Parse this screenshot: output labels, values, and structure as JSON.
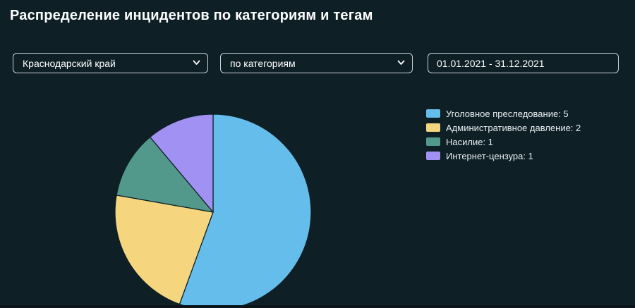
{
  "page": {
    "title": "Распределение инцидентов по категориям и тегам",
    "background_color": "#0e1f26"
  },
  "controls": {
    "region_select": {
      "value": "Краснодарский край"
    },
    "grouping_select": {
      "value": "по категориям"
    },
    "date_range_input": {
      "value": "01.01.2021 - 31.12.2021"
    }
  },
  "chart_data": {
    "type": "pie",
    "title": "Распределение инцидентов по категориям и тегам",
    "total": 9,
    "start_angle_deg": 0,
    "direction": "clockwise",
    "legend_position": "right",
    "legend_label_format": "{label}: {value}",
    "slices": [
      {
        "label": "Уголовное преследование",
        "value": 5,
        "color": "#65bdec"
      },
      {
        "label": "Административное давление",
        "value": 2,
        "color": "#f5d67e"
      },
      {
        "label": "Насилие",
        "value": 1,
        "color": "#52998c"
      },
      {
        "label": "Интернет-цензура",
        "value": 1,
        "color": "#a191f2"
      }
    ],
    "slice_stroke_color": "#0e1f26",
    "slice_stroke_width": 1.25
  }
}
